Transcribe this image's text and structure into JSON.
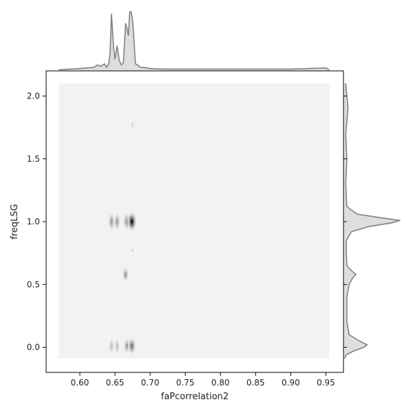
{
  "chart_data": {
    "type": "joint-kde",
    "xlabel": "faPcorrelation2",
    "ylabel": "freqLSG",
    "xlim": [
      0.552,
      0.975
    ],
    "ylim": [
      -0.2,
      2.2
    ],
    "x_ticks": [
      0.6,
      0.65,
      0.7,
      0.75,
      0.8,
      0.85,
      0.9,
      0.95
    ],
    "x_tick_labels": [
      "0.60",
      "0.65",
      "0.70",
      "0.75",
      "0.80",
      "0.85",
      "0.90",
      "0.95"
    ],
    "y_ticks": [
      0.0,
      0.5,
      1.0,
      1.5,
      2.0
    ],
    "y_tick_labels": [
      "0.0",
      "0.5",
      "1.0",
      "1.5",
      "2.0"
    ],
    "grid": false,
    "kde_region": {
      "x": [
        0.57,
        0.955
      ],
      "y": [
        -0.09,
        2.1
      ]
    },
    "clusters": [
      {
        "x": 0.645,
        "y": 1.0,
        "rx": 0.004,
        "ry": 0.06,
        "level": 2
      },
      {
        "x": 0.653,
        "y": 1.0,
        "rx": 0.004,
        "ry": 0.06,
        "level": 2
      },
      {
        "x": 0.667,
        "y": 1.0,
        "rx": 0.005,
        "ry": 0.06,
        "level": 2
      },
      {
        "x": 0.674,
        "y": 1.0,
        "rx": 0.006,
        "ry": 0.07,
        "level": 5
      },
      {
        "x": 0.645,
        "y": 0.01,
        "rx": 0.003,
        "ry": 0.05,
        "level": 1
      },
      {
        "x": 0.653,
        "y": 0.01,
        "rx": 0.003,
        "ry": 0.05,
        "level": 1
      },
      {
        "x": 0.667,
        "y": 0.01,
        "rx": 0.004,
        "ry": 0.05,
        "level": 2
      },
      {
        "x": 0.674,
        "y": 0.01,
        "rx": 0.005,
        "ry": 0.06,
        "level": 3
      },
      {
        "x": 0.665,
        "y": 0.58,
        "rx": 0.004,
        "ry": 0.05,
        "level": 2
      },
      {
        "x": 0.675,
        "y": 1.77,
        "rx": 0.001,
        "ry": 0.025,
        "level": 1
      },
      {
        "x": 0.675,
        "y": 0.77,
        "rx": 0.001,
        "ry": 0.02,
        "level": 1
      }
    ],
    "x_marginal": {
      "x": [
        0.57,
        0.6,
        0.62,
        0.625,
        0.63,
        0.635,
        0.638,
        0.641,
        0.643,
        0.645,
        0.648,
        0.65,
        0.653,
        0.656,
        0.659,
        0.662,
        0.665,
        0.667,
        0.669,
        0.671,
        0.673,
        0.675,
        0.677,
        0.679,
        0.682,
        0.686,
        0.69,
        0.7,
        0.72,
        0.8,
        0.9,
        0.95,
        0.955
      ],
      "density": [
        0.02,
        0.04,
        0.06,
        0.1,
        0.08,
        0.12,
        0.06,
        0.12,
        0.3,
        0.96,
        0.4,
        0.2,
        0.42,
        0.18,
        0.1,
        0.14,
        0.8,
        0.72,
        0.6,
        1.0,
        1.0,
        0.86,
        0.52,
        0.12,
        0.1,
        0.06,
        0.06,
        0.04,
        0.03,
        0.03,
        0.03,
        0.05,
        0.02
      ]
    },
    "y_marginal": {
      "y": [
        -0.09,
        -0.06,
        -0.03,
        0.0,
        0.02,
        0.05,
        0.1,
        0.2,
        0.4,
        0.5,
        0.55,
        0.58,
        0.61,
        0.65,
        0.75,
        0.85,
        0.92,
        0.96,
        0.99,
        1.01,
        1.03,
        1.06,
        1.12,
        1.3,
        1.5,
        1.7,
        1.8,
        1.9,
        2.0,
        2.1
      ],
      "density": [
        0.02,
        0.05,
        0.18,
        0.36,
        0.42,
        0.28,
        0.1,
        0.06,
        0.06,
        0.1,
        0.16,
        0.22,
        0.14,
        0.06,
        0.05,
        0.05,
        0.14,
        0.44,
        0.85,
        1.0,
        0.68,
        0.24,
        0.06,
        0.04,
        0.06,
        0.04,
        0.06,
        0.08,
        0.06,
        0.04
      ]
    },
    "colors": {
      "kde_base": "#f2f2f2",
      "kde_levels": [
        "#e2e2e2",
        "#c6c6c6",
        "#a3a3a3",
        "#7d7d7d",
        "#4a4a4a",
        "#141414"
      ],
      "marginal_line": "#808080",
      "marginal_fill": "#dedede"
    }
  }
}
